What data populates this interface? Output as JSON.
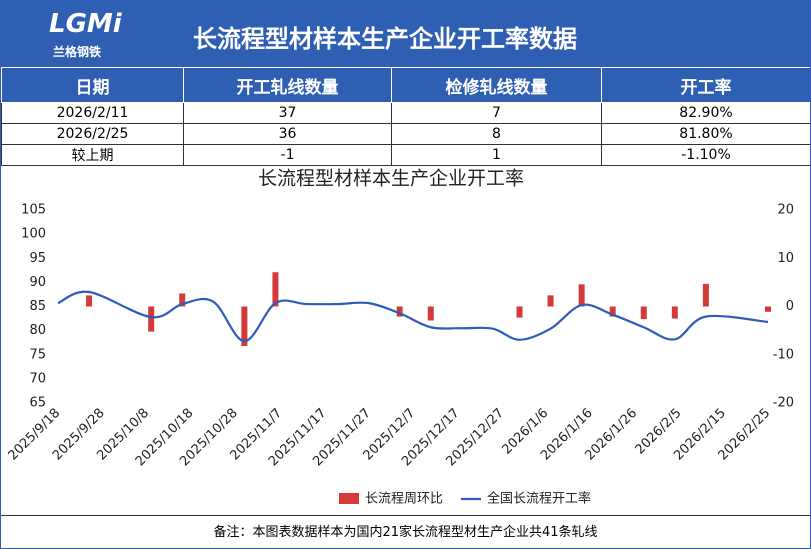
{
  "header": {
    "logo": "LGMi",
    "logo_subtitle": "兰格钢铁",
    "title": "长流程型材样本生产企业开工率数据"
  },
  "table": {
    "columns": [
      "日期",
      "开工轧线数量",
      "检修轧线数量",
      "开工率"
    ],
    "rows": [
      [
        "2026/2/11",
        "37",
        "7",
        "82.90%"
      ],
      [
        "2026/2/25",
        "36",
        "8",
        "81.80%"
      ],
      [
        "较上期",
        "-1",
        "1",
        "-1.10%"
      ]
    ]
  },
  "chart_data": {
    "type": "combo",
    "title": "长流程型材样本生产企业开工率",
    "x": [
      "2025/9/18",
      "2025/9/25",
      "2025/10/9",
      "2025/10/16",
      "2025/10/23",
      "2025/10/30",
      "2025/11/6",
      "2025/11/13",
      "2025/11/20",
      "2025/11/27",
      "2025/12/4",
      "2025/12/11",
      "2025/12/18",
      "2025/12/25",
      "2025/12/31",
      "2026/1/7",
      "2026/1/14",
      "2026/1/21",
      "2026/1/28",
      "2026/2/4",
      "2026/2/11",
      "2026/2/25"
    ],
    "xlim": [
      "2025/9/18",
      "2026/2/25"
    ],
    "xticks": [
      "2025/9/18",
      "2025/9/28",
      "2025/10/8",
      "2025/10/18",
      "2025/10/28",
      "2025/11/7",
      "2025/11/17",
      "2025/11/27",
      "2025/12/7",
      "2025/12/17",
      "2025/12/27",
      "2026/1/6",
      "2026/1/16",
      "2026/1/26",
      "2026/2/5",
      "2026/2/15",
      "2026/2/25"
    ],
    "ylim": [
      65,
      105
    ],
    "yticks": [
      65,
      70,
      75,
      80,
      85,
      90,
      95,
      100,
      105
    ],
    "y2lim": [
      -20,
      20
    ],
    "y2ticks": [
      -20,
      -10,
      0,
      10,
      20
    ],
    "series": [
      {
        "name": "长流程周环比",
        "type": "bar",
        "axis": "y2",
        "color": "#d43a3a",
        "values": [
          null,
          2.3,
          -5.2,
          2.7,
          0,
          -8.2,
          7.1,
          0,
          0,
          0,
          -2.1,
          -2.9,
          0,
          0,
          -2.3,
          2.3,
          4.6,
          -2.1,
          -2.6,
          -2.5,
          4.7,
          -1.1
        ]
      },
      {
        "name": "全国长流程开工率",
        "type": "line",
        "color": "#2e5cb8",
        "values": [
          85.7,
          88,
          82.8,
          85.5,
          86,
          77.8,
          85.7,
          85.5,
          85.5,
          85.7,
          83.6,
          80.7,
          80.5,
          80.4,
          78.1,
          80.4,
          85.3,
          83.3,
          80.7,
          78.2,
          82.9,
          81.8
        ]
      }
    ]
  },
  "footer": {
    "note": "备注：本图表数据样本为国内21家长流程型材生产企业共41条轧线"
  }
}
